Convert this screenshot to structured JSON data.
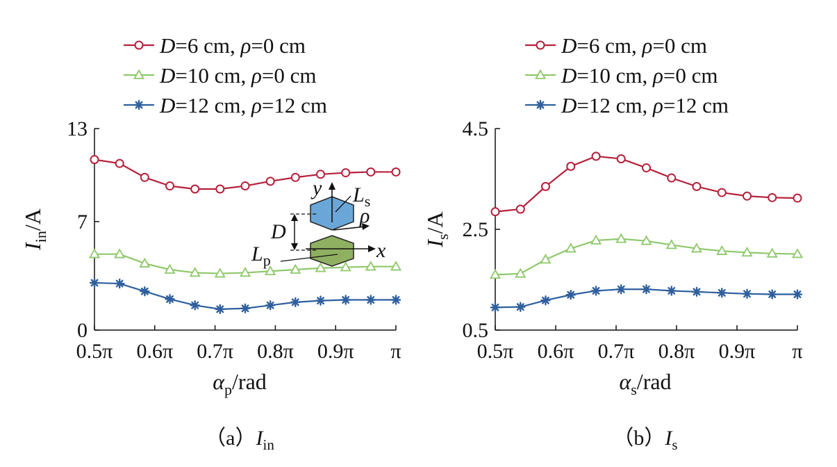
{
  "chart_data": [
    {
      "type": "line",
      "panel_caption": {
        "prefix": "（a）",
        "symbol": "I",
        "subscript": "in"
      },
      "xlabel": {
        "symbol": "α",
        "subscript": "p",
        "unit": "/rad"
      },
      "ylabel": {
        "symbol": "I",
        "subscript": "in",
        "unit": "/A"
      },
      "x_tick_labels": [
        "0.5π",
        "0.6π",
        "0.7π",
        "0.8π",
        "0.9π",
        "π"
      ],
      "x_ticks": [
        0.5,
        0.6,
        0.7,
        0.8,
        0.9,
        1.0
      ],
      "xlim": [
        0.5,
        1.0
      ],
      "y_tick_labels": [
        "0",
        "7",
        "13"
      ],
      "y_ticks": [
        0,
        7,
        13
      ],
      "ylim": [
        0,
        13
      ],
      "x_unit": "π rad",
      "x": [
        0.5,
        0.5417,
        0.5833,
        0.625,
        0.6667,
        0.7083,
        0.75,
        0.7917,
        0.8333,
        0.875,
        0.9167,
        0.9583,
        1.0
      ],
      "series": [
        {
          "name": "D=6 cm, ρ=0 cm",
          "color": "#b5203a",
          "marker": "circle",
          "values": [
            11.0,
            10.75,
            9.85,
            9.3,
            9.1,
            9.1,
            9.3,
            9.6,
            9.85,
            10.05,
            10.15,
            10.2,
            10.2
          ]
        },
        {
          "name": "D=10 cm, ρ=0 cm",
          "color": "#8ec86a",
          "marker": "triangle",
          "values": [
            4.9,
            4.9,
            4.3,
            3.9,
            3.7,
            3.65,
            3.7,
            3.8,
            3.9,
            4.0,
            4.05,
            4.1,
            4.1
          ]
        },
        {
          "name": "D=12 cm, ρ=12 cm",
          "color": "#2e5f9e",
          "marker": "star",
          "values": [
            3.05,
            3.0,
            2.5,
            2.0,
            1.6,
            1.35,
            1.4,
            1.6,
            1.8,
            1.9,
            1.95,
            1.95,
            1.95
          ]
        }
      ],
      "legend": {
        "placement": "top",
        "entries": [
          {
            "var1": "D",
            "val1": "=6 cm, ",
            "var2": "ρ",
            "val2": "=0 cm"
          },
          {
            "var1": "D",
            "val1": "=10 cm, ",
            "var2": "ρ",
            "val2": "=0 cm"
          },
          {
            "var1": "D",
            "val1": "=12 cm, ",
            "var2": "ρ",
            "val2": "=12 cm"
          }
        ]
      },
      "inset": {
        "labels": {
          "y": "y",
          "x": "x",
          "rho": "ρ",
          "D": "D",
          "Ls": "L",
          "Ls_sub": "s",
          "Lp": "L",
          "Lp_sub": "p"
        },
        "colors": {
          "upper_coil": "#6aa7d8",
          "lower_coil": "#8fb061"
        }
      }
    },
    {
      "type": "line",
      "panel_caption": {
        "prefix": "（b）",
        "symbol": "I",
        "subscript": "s"
      },
      "xlabel": {
        "symbol": "α",
        "subscript": "s",
        "unit": "/rad"
      },
      "ylabel": {
        "symbol": "I",
        "subscript": "s",
        "unit": "/A"
      },
      "x_tick_labels": [
        "0.5π",
        "0.6π",
        "0.7π",
        "0.8π",
        "0.9π",
        "π"
      ],
      "x_ticks": [
        0.5,
        0.6,
        0.7,
        0.8,
        0.9,
        1.0
      ],
      "xlim": [
        0.5,
        1.0
      ],
      "y_tick_labels": [
        "0.5",
        "2.5",
        "4.5"
      ],
      "y_ticks": [
        0.5,
        2.5,
        4.5
      ],
      "ylim": [
        0.5,
        4.5
      ],
      "x_unit": "π rad",
      "x": [
        0.5,
        0.5417,
        0.5833,
        0.625,
        0.6667,
        0.7083,
        0.75,
        0.7917,
        0.8333,
        0.875,
        0.9167,
        0.9583,
        1.0
      ],
      "series": [
        {
          "name": "D=6 cm, ρ=0 cm",
          "color": "#b5203a",
          "marker": "circle",
          "values": [
            2.85,
            2.9,
            3.35,
            3.75,
            3.95,
            3.9,
            3.72,
            3.52,
            3.35,
            3.23,
            3.16,
            3.13,
            3.12
          ]
        },
        {
          "name": "D=10 cm, ρ=0 cm",
          "color": "#8ec86a",
          "marker": "triangle",
          "values": [
            1.6,
            1.62,
            1.9,
            2.12,
            2.28,
            2.31,
            2.27,
            2.19,
            2.12,
            2.07,
            2.04,
            2.02,
            2.01
          ]
        },
        {
          "name": "D=12 cm, ρ=12 cm",
          "color": "#2e5f9e",
          "marker": "star",
          "values": [
            0.95,
            0.96,
            1.09,
            1.2,
            1.28,
            1.31,
            1.31,
            1.28,
            1.26,
            1.24,
            1.22,
            1.21,
            1.21
          ]
        }
      ],
      "legend": {
        "placement": "top",
        "entries": [
          {
            "var1": "D",
            "val1": "=6 cm, ",
            "var2": "ρ",
            "val2": "=0 cm"
          },
          {
            "var1": "D",
            "val1": "=10 cm, ",
            "var2": "ρ",
            "val2": "=0 cm"
          },
          {
            "var1": "D",
            "val1": "=12 cm, ",
            "var2": "ρ",
            "val2": "=12 cm"
          }
        ]
      }
    }
  ]
}
